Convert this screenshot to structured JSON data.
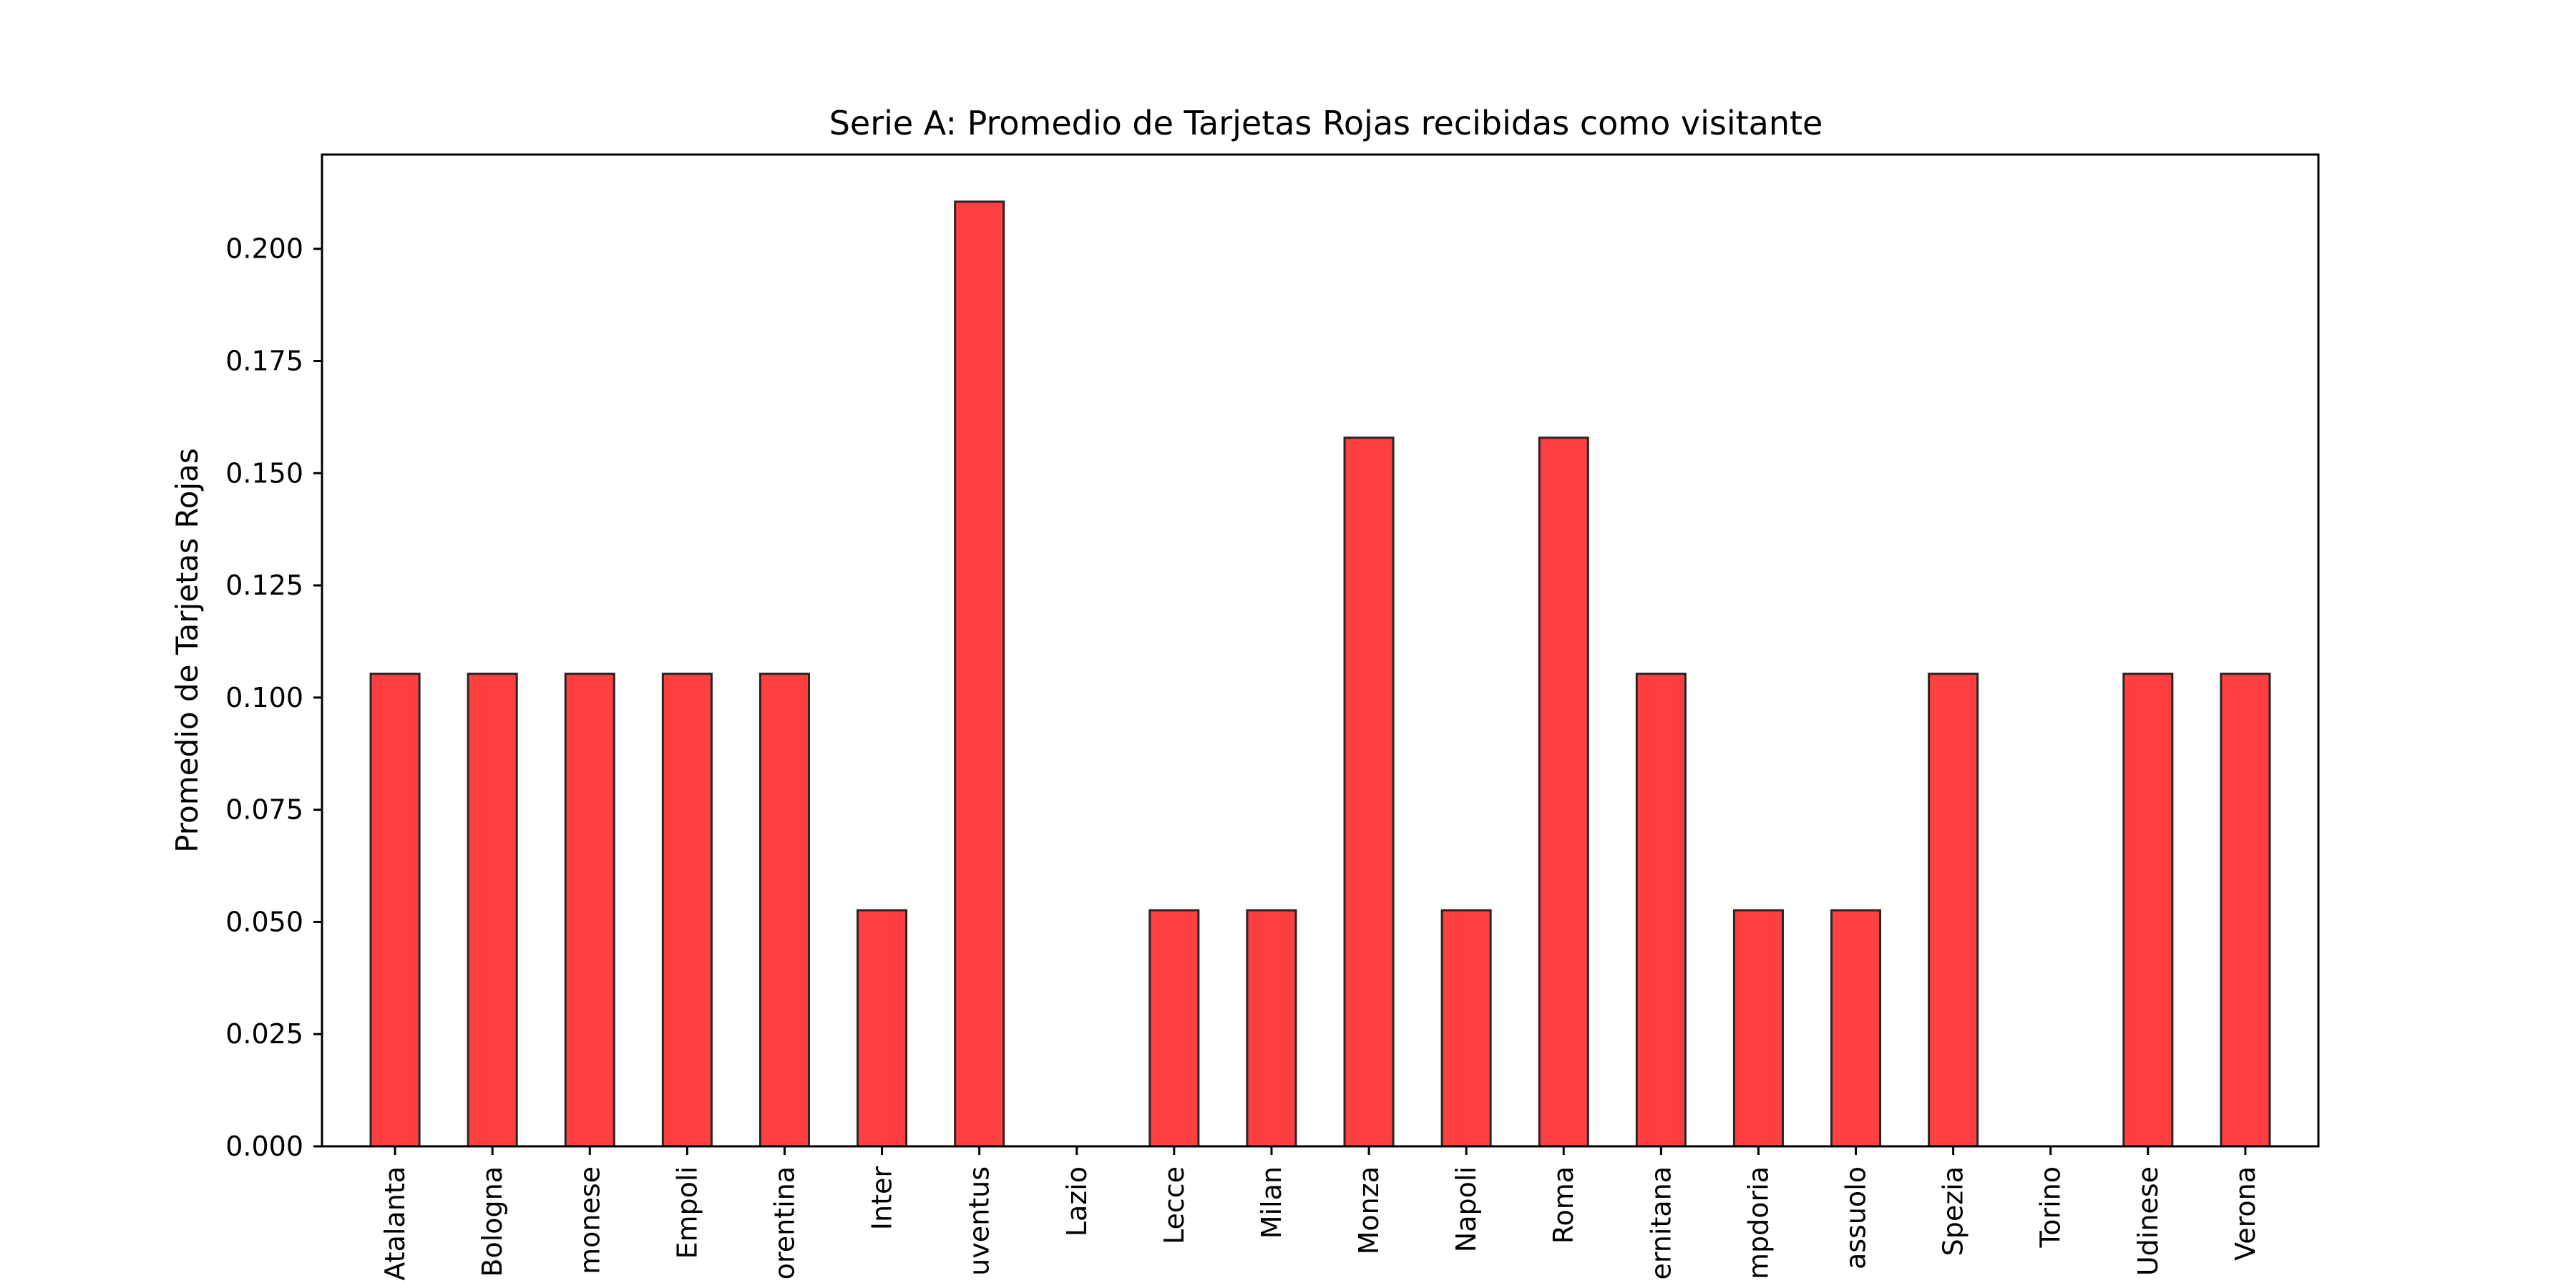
{
  "chart_data": {
    "type": "bar",
    "title": "Serie A: Promedio de Tarjetas Rojas recibidas como visitante",
    "xlabel": "",
    "ylabel": "Promedio de Tarjetas Rojas",
    "ylim": [
      0,
      0.221
    ],
    "yticks": [
      "0.000",
      "0.025",
      "0.050",
      "0.075",
      "0.100",
      "0.125",
      "0.150",
      "0.175",
      "0.200"
    ],
    "grid": false,
    "legend": "none",
    "bar_color": "#ff4040",
    "bar_edge_color": "#262626",
    "categories": [
      "Atalanta",
      "Bologna",
      "Cremonese",
      "Empoli",
      "Fiorentina",
      "Inter",
      "Juventus",
      "Lazio",
      "Lecce",
      "Milan",
      "Monza",
      "Napoli",
      "Roma",
      "Salernitana",
      "Sampdoria",
      "Sassuolo",
      "Spezia",
      "Torino",
      "Udinese",
      "Verona"
    ],
    "tick_labels": [
      "Atalanta",
      "Bologna",
      "monese",
      "Empoli",
      "orentina",
      "Inter",
      "uventus",
      "Lazio",
      "Lecce",
      "Milan",
      "Monza",
      "Napoli",
      "Roma",
      "ernitana",
      "mpdoria",
      "assuolo",
      "Spezia",
      "Torino",
      "Udinese",
      "Verona"
    ],
    "values": [
      0.1053,
      0.1053,
      0.1053,
      0.1053,
      0.1053,
      0.0526,
      0.2105,
      0.0,
      0.0526,
      0.0526,
      0.1579,
      0.0526,
      0.1579,
      0.1053,
      0.0526,
      0.0526,
      0.1053,
      0.0,
      0.1053,
      0.1053
    ]
  }
}
